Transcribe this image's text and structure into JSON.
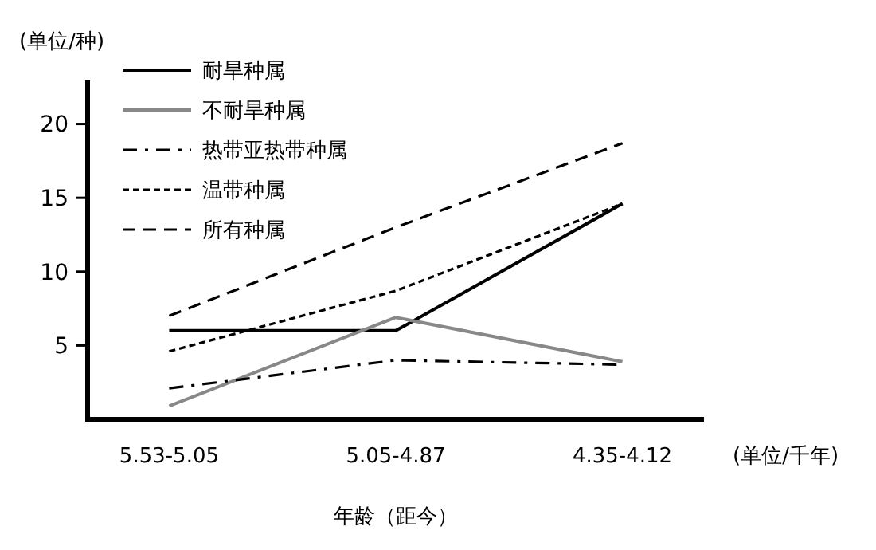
{
  "chart_data": {
    "type": "line",
    "ylabel": "(单位/种)",
    "xlabel": "年龄（距今）",
    "annotations": [
      "(单位/千年)"
    ],
    "categories": [
      "5.53-5.05",
      "5.05-4.87",
      "4.35-4.12"
    ],
    "ylim": [
      0,
      23
    ],
    "yticks": [
      5,
      10,
      15,
      20
    ],
    "grid": false,
    "legend": "top left",
    "marker": "none",
    "series": [
      {
        "name": "耐旱种属",
        "color": "#000000",
        "line_style": "solid",
        "values": [
          6.0,
          6.0,
          14.6
        ]
      },
      {
        "name": "不耐旱种属",
        "color": "#888888",
        "line_style": "solid",
        "values": [
          0.9,
          6.9,
          3.9
        ]
      },
      {
        "name": "热带亚热带种属",
        "color": "#000000",
        "line_style": "dashdot",
        "values": [
          2.1,
          4.0,
          3.7
        ]
      },
      {
        "name": "温带种属",
        "color": "#000000",
        "line_style": "dotted",
        "values": [
          4.6,
          8.7,
          14.6
        ]
      },
      {
        "name": "所有种属",
        "color": "#000000",
        "line_style": "dashed",
        "values": [
          7.0,
          13.0,
          18.7
        ]
      }
    ]
  }
}
